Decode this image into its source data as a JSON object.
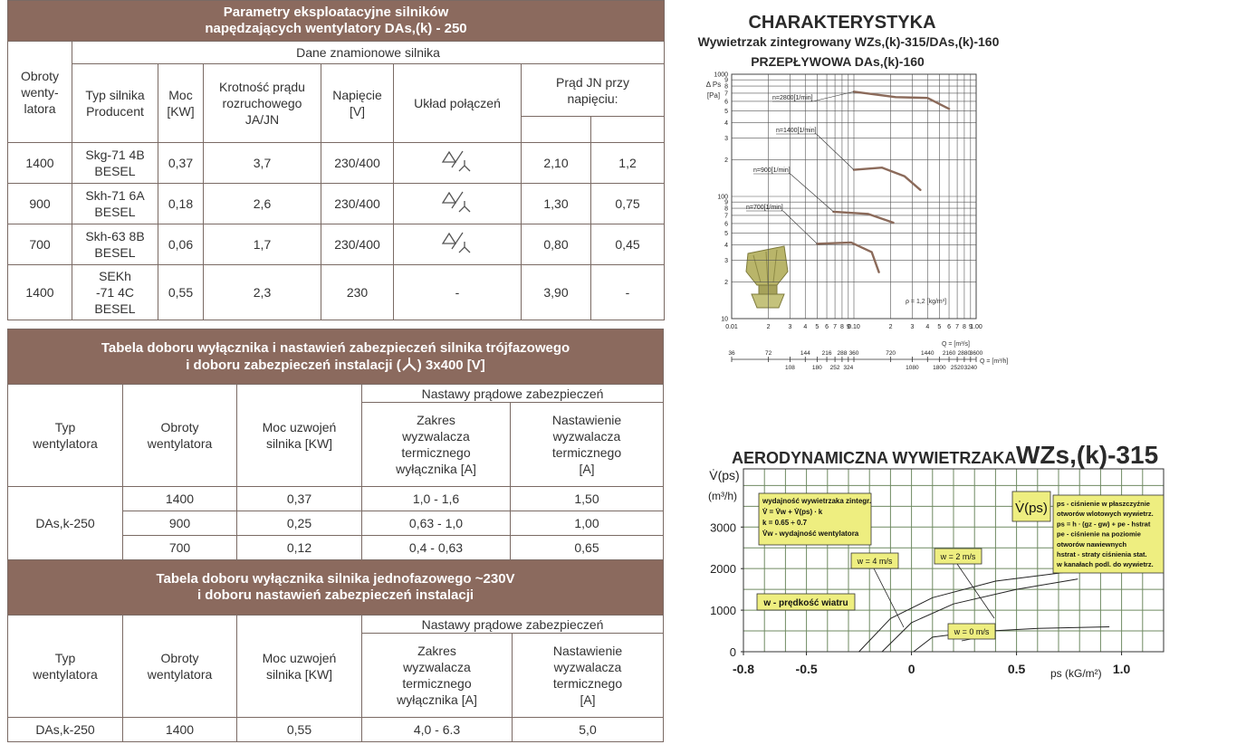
{
  "table1": {
    "title": [
      "Parametry eksploatacyjne silników",
      "napędzających wentylatory DAs,(k) - 250"
    ],
    "group": "Dane znamionowe silnika",
    "headers": {
      "obroty": "Obroty wenty-latora",
      "typ": "Typ silnika Producent",
      "moc": "Moc [KW]",
      "krotnosc": "Krotność prądu rozruchowego JA/JN",
      "napiecie": "Napięcie [V]",
      "uklad": "Układ połączeń",
      "prad": "Prąd JN przy napięciu:"
    },
    "rows": [
      {
        "obroty": "1400",
        "typ": "Skg-71 4B BESEL",
        "moc": "0,37",
        "krotnosc": "3,7",
        "napiecie": "230/400",
        "prad1": "2,10",
        "prad2": "1,2"
      },
      {
        "obroty": "900",
        "typ": "Skh-71 6A BESEL",
        "moc": "0,18",
        "krotnosc": "2,6",
        "napiecie": "230/400",
        "prad1": "1,30",
        "prad2": "0,75"
      },
      {
        "obroty": "700",
        "typ": "Skh-63 8B BESEL",
        "moc": "0,06",
        "krotnosc": "1,7",
        "napiecie": "230/400",
        "prad1": "0,80",
        "prad2": "0,45"
      },
      {
        "obroty": "1400",
        "typ": "SEKh -71 4C BESEL",
        "moc": "0,55",
        "krotnosc": "2,3",
        "napiecie": "230",
        "uklad": "-",
        "prad1": "3,90",
        "prad2": "-"
      }
    ]
  },
  "table2": {
    "title": {
      "line1": "Tabela doboru wyłącznika i nastawień zabezpieczeń silnika trójfazowego",
      "line2a": "i doboru zabezpieczeń instalacji (",
      "line2b": ") 3x400 [V]"
    },
    "group": "Nastawy prądowe zabezpieczeń",
    "headers": [
      "Typ wentylatora",
      "Obroty wentylatora",
      "Moc uzwojeń silnika [KW]",
      "Zakres wyzwalacza termicznego wyłącznika [A]",
      "Nastawienie wyzwalacza termicznego [A]"
    ],
    "typ": "DAs,k-250",
    "rows": [
      [
        "1400",
        "0,37",
        "1,0 - 1,6",
        "1,50"
      ],
      [
        "900",
        "0,25",
        "0,63 - 1,0",
        "1,00"
      ],
      [
        "700",
        "0,12",
        "0,4 - 0,63",
        "0,65"
      ]
    ]
  },
  "table3": {
    "title": [
      "Tabela doboru wyłącznika silnika jednofazowego ~230V",
      "i doboru nastawień zabezpieczeń instalacji"
    ],
    "group": "Nastawy prądowe zabezpieczeń",
    "headers": [
      "Typ wentylatora",
      "Obroty wentylatora",
      "Moc uzwojeń silnika [KW]",
      "Zakres wyzwalacza termicznego wyłącznika [A]",
      "Nastawienie wyzwalacza termicznego [A]"
    ],
    "rows": [
      [
        "DAs,k-250",
        "1400",
        "0,55",
        "4,0 - 6.3",
        "5,0"
      ]
    ]
  },
  "chart_data": [
    {
      "type": "line",
      "log_scale": true,
      "grid": true,
      "title": "CHARAKTERYSTYKA",
      "subtitle": [
        "Wywietrzak zintegrowany WZs,(k)-315/DAs,(k)-160",
        "PRZEPŁYWOWA DAs,(k)-160"
      ],
      "ylabel": [
        "Δ Ps",
        "[Pa]"
      ],
      "xlabel": "Q = [m³/s]",
      "x2label": "Q = [m³/h]",
      "annotation": "ρ = 1,2 [kg/m³]",
      "xlim": [
        0.01,
        1
      ],
      "ylim": [
        10,
        1000
      ],
      "x2lim": [
        36,
        3600
      ],
      "xticks": [
        {
          "value": 0.01,
          "label": "0.01"
        },
        {
          "value": 0.02,
          "label": "2"
        },
        {
          "value": 0.03,
          "label": "3"
        },
        {
          "value": 0.04,
          "label": "4"
        },
        {
          "value": 0.05,
          "label": "5"
        },
        {
          "value": 0.06,
          "label": "6"
        },
        {
          "value": 0.07,
          "label": "7"
        },
        {
          "value": 0.08,
          "label": "8"
        },
        {
          "value": 0.09,
          "label": "9"
        },
        {
          "value": 0.1,
          "label": "0.10"
        },
        {
          "value": 0.2,
          "label": "2"
        },
        {
          "value": 0.3,
          "label": "3"
        },
        {
          "value": 0.4,
          "label": "4"
        },
        {
          "value": 0.5,
          "label": "5"
        },
        {
          "value": 0.6,
          "label": "6"
        },
        {
          "value": 0.7,
          "label": "7"
        },
        {
          "value": 0.8,
          "label": "8"
        },
        {
          "value": 0.9,
          "label": "9"
        },
        {
          "value": 1,
          "label": "1.00"
        }
      ],
      "yticks": [
        10,
        {
          "value": 20,
          "label": "2"
        },
        {
          "value": 30,
          "label": "3"
        },
        {
          "value": 40,
          "label": "4"
        },
        {
          "value": 50,
          "label": "5"
        },
        {
          "value": 60,
          "label": "6"
        },
        {
          "value": 70,
          "label": "7"
        },
        {
          "value": 80,
          "label": "8"
        },
        {
          "value": 90,
          "label": "9"
        },
        100,
        {
          "value": 200,
          "label": "2"
        },
        {
          "value": 300,
          "label": "3"
        },
        {
          "value": 400,
          "label": "4"
        },
        {
          "value": 500,
          "label": "5"
        },
        {
          "value": 600,
          "label": "6"
        },
        {
          "value": 700,
          "label": "7"
        },
        {
          "value": 800,
          "label": "8"
        },
        {
          "value": 900,
          "label": "9"
        },
        1000
      ],
      "x2ticks": [
        36,
        72,
        108,
        144,
        180,
        216,
        252,
        288,
        324,
        360,
        720,
        1080,
        1440,
        1800,
        2160,
        2520,
        2880,
        3240,
        3600
      ],
      "series": [
        {
          "name": "n=2800[1/min]",
          "color": "#8b6a5a",
          "x": [
            0.1,
            0.22,
            0.4,
            0.6
          ],
          "values": [
            720,
            650,
            640,
            520
          ]
        },
        {
          "name": "n=1400[1/min]",
          "color": "#8b6a5a",
          "x": [
            0.1,
            0.17,
            0.26,
            0.35
          ],
          "values": [
            165,
            172,
            146,
            113
          ]
        },
        {
          "name": "n=900[1/min]",
          "color": "#8b6a5a",
          "x": [
            0.068,
            0.13,
            0.21
          ],
          "values": [
            75,
            72,
            61
          ]
        },
        {
          "name": "n=700[1/min]",
          "color": "#8b6a5a",
          "x": [
            0.05,
            0.095,
            0.14,
            0.16
          ],
          "values": [
            41,
            42,
            35,
            24
          ]
        }
      ]
    },
    {
      "type": "line",
      "grid": true,
      "title": [
        "AERODYNAMICZNA WYWIETRZAKA",
        "WZs,(k)-315"
      ],
      "ylabel": [
        "V̇(ps)",
        "(m³/h)"
      ],
      "xlabel": "ps  (kG/m²)",
      "xlim": [
        -0.8,
        1.2
      ],
      "ylim": [
        0,
        4400
      ],
      "xticks": [
        -0.8,
        -0.5,
        0,
        0.5,
        {
          "value": 1,
          "label": "1.0"
        }
      ],
      "yticks": [
        0,
        1000,
        2000,
        3000
      ],
      "xgrid": [
        -0.8,
        -0.7,
        -0.6,
        -0.5,
        -0.4,
        -0.3,
        -0.2,
        -0.1,
        0,
        0.1,
        0.2,
        0.3,
        0.4,
        0.5,
        0.6,
        0.7,
        0.8,
        0.9,
        1,
        1.1,
        1.2
      ],
      "ygrid": [
        0,
        500,
        1000,
        1500,
        2000,
        2500,
        3000,
        3500,
        4000
      ],
      "notes": {
        "formula": [
          "wydajność wywietrzaka zintegr.",
          "V̇ = V̇w + V̇(ps) ∙ k",
          "k = 0.65 ÷ 0.7",
          "V̇w - wydajność wentylatora"
        ],
        "symbol": "V̇(ps)",
        "pressure": [
          "ps - ciśnienie w płaszczyźnie",
          "otworów wlotowych wywietrz.",
          "ps = h ∙ (gz - gw) + pe - hstrat",
          "pe - ciśnienie na poziomie",
          "otworów nawiewnych",
          "hstrat - straty ciśnienia stat.",
          "w kanałach podl. do wywietrz."
        ],
        "wind": "w - prędkość wiatru"
      },
      "series": [
        {
          "name": "w = 4 m/s",
          "color": "#222222",
          "x": [
            -0.25,
            -0.1,
            0.1,
            0.4,
            0.81
          ],
          "values": [
            0,
            800,
            1300,
            1700,
            1960
          ]
        },
        {
          "name": "w = 2 m/s",
          "color": "#222222",
          "x": [
            -0.14,
            0,
            0.2,
            0.5,
            0.79
          ],
          "values": [
            0,
            700,
            1150,
            1500,
            1750
          ]
        },
        {
          "name": "w = 0 m/s",
          "color": "#222222",
          "x": [
            0.01,
            0.1,
            0.3,
            0.6,
            0.94
          ],
          "values": [
            0,
            350,
            480,
            560,
            600
          ]
        }
      ]
    }
  ]
}
